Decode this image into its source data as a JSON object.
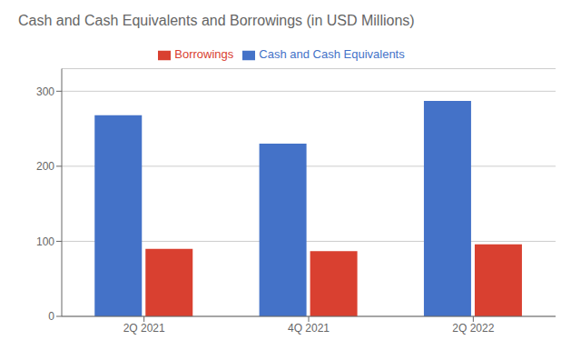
{
  "chart_data": {
    "type": "bar",
    "title": "Cash and Cash Equivalents and Borrowings (in USD Millions)",
    "categories": [
      "2Q 2021",
      "4Q 2021",
      "2Q 2022"
    ],
    "series": [
      {
        "name": "Cash and Cash Equivalents",
        "color": "#4472c8",
        "values": [
          268,
          230,
          287
        ]
      },
      {
        "name": "Borrowings",
        "color": "#d94030",
        "values": [
          90,
          87,
          96
        ]
      }
    ],
    "ylim": [
      0,
      330
    ],
    "yticks": [
      0,
      100,
      200,
      300
    ],
    "grid": true,
    "legend": "top"
  }
}
